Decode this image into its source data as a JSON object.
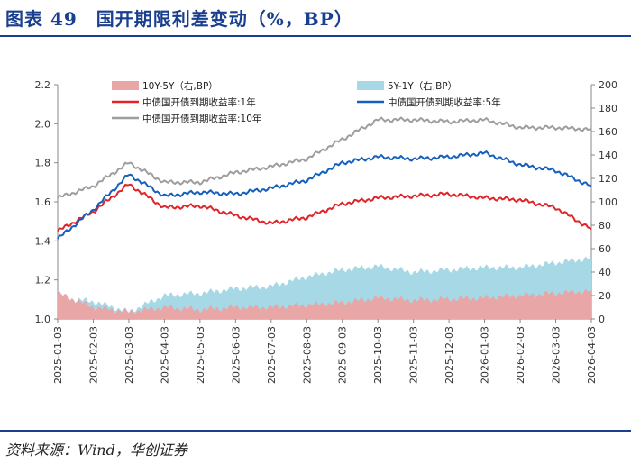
{
  "title": "图表 49　国开期限利差变动（%，BP）",
  "source": "资料来源：Wind，华创证券",
  "colors": {
    "title": "#1a3f8f",
    "area_10y5y": "#e8a6a6",
    "area_5y1y": "#a6d8e6",
    "line_1y": "#e0242a",
    "line_5y": "#1560bd",
    "line_10y": "#9e9e9e"
  },
  "chart_data": {
    "type": "line",
    "x": [
      "2025-01-03",
      "2025-02-03",
      "2025-03-03",
      "2025-04-03",
      "2025-05-03",
      "2025-06-03",
      "2025-07-03",
      "2025-08-03",
      "2025-09-03",
      "2025-10-03",
      "2025-11-03",
      "2025-12-03",
      "2026-01-03",
      "2026-02-03",
      "2026-03-03",
      "2026-04-03"
    ],
    "y_left": {
      "ticks": [
        "1.0",
        "1.2",
        "1.4",
        "1.6",
        "1.8",
        "2.0",
        "2.2"
      ],
      "range": [
        1.0,
        2.2
      ]
    },
    "y_right": {
      "ticks": [
        "0",
        "20",
        "40",
        "60",
        "80",
        "100",
        "120",
        "140",
        "160",
        "180",
        "200"
      ],
      "range": [
        0,
        200
      ]
    },
    "series": [
      {
        "name": "10Y-5Y（右,BP）",
        "type": "area",
        "axis": "right",
        "values": [
          22,
          10,
          6,
          10,
          8,
          10,
          10,
          12,
          14,
          18,
          16,
          17,
          18,
          20,
          22,
          24
        ]
      },
      {
        "name": "5Y-1Y（右,BP）",
        "type": "area",
        "axis": "right",
        "values": [
          18,
          15,
          6,
          20,
          22,
          26,
          28,
          36,
          42,
          45,
          40,
          42,
          44,
          44,
          48,
          52
        ]
      },
      {
        "name": "中债国开债到期收益率:1年",
        "type": "line",
        "axis": "left",
        "values": [
          1.45,
          1.55,
          1.69,
          1.57,
          1.58,
          1.53,
          1.49,
          1.52,
          1.59,
          1.62,
          1.63,
          1.64,
          1.62,
          1.61,
          1.57,
          1.46
        ]
      },
      {
        "name": "中债国开债到期收益率:5年",
        "type": "line",
        "axis": "left",
        "values": [
          1.41,
          1.56,
          1.74,
          1.63,
          1.65,
          1.64,
          1.67,
          1.71,
          1.8,
          1.83,
          1.82,
          1.83,
          1.85,
          1.79,
          1.76,
          1.68
        ]
      },
      {
        "name": "中债国开债到期收益率:10年",
        "type": "line",
        "axis": "left",
        "values": [
          1.62,
          1.68,
          1.8,
          1.7,
          1.7,
          1.75,
          1.78,
          1.82,
          1.92,
          2.02,
          2.02,
          2.01,
          2.02,
          1.98,
          1.98,
          1.97
        ]
      }
    ],
    "legend_placement": "top",
    "grid": false
  }
}
